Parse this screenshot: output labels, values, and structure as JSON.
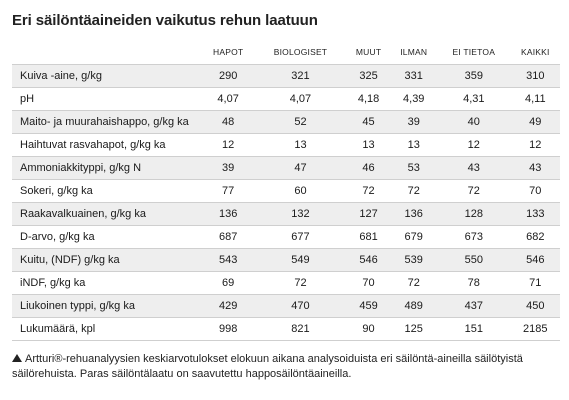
{
  "title": "Eri säilöntäaineiden vaikutus rehun laatuun",
  "columns": [
    "HAPOT",
    "BIOLOGISET",
    "MUUT",
    "ILMAN",
    "EI TIETOA",
    "KAIKKI"
  ],
  "rows": [
    {
      "label": "Kuiva -aine, g/kg",
      "values": [
        "290",
        "321",
        "325",
        "331",
        "359",
        "310"
      ]
    },
    {
      "label": "pH",
      "values": [
        "4,07",
        "4,07",
        "4,18",
        "4,39",
        "4,31",
        "4,11"
      ]
    },
    {
      "label": "Maito- ja muurahaishappo, g/kg ka",
      "values": [
        "48",
        "52",
        "45",
        "39",
        "40",
        "49"
      ]
    },
    {
      "label": "Haihtuvat rasvahapot, g/kg ka",
      "values": [
        "12",
        "13",
        "13",
        "13",
        "12",
        "12"
      ]
    },
    {
      "label": "Ammoniakkityppi, g/kg N",
      "values": [
        "39",
        "47",
        "46",
        "53",
        "43",
        "43"
      ]
    },
    {
      "label": "Sokeri, g/kg ka",
      "values": [
        "77",
        "60",
        "72",
        "72",
        "72",
        "70"
      ]
    },
    {
      "label": "Raakavalkuainen, g/kg ka",
      "values": [
        "136",
        "132",
        "127",
        "136",
        "128",
        "133"
      ]
    },
    {
      "label": "D-arvo, g/kg ka",
      "values": [
        "687",
        "677",
        "681",
        "679",
        "673",
        "682"
      ]
    },
    {
      "label": "Kuitu, (NDF) g/kg ka",
      "values": [
        "543",
        "549",
        "546",
        "539",
        "550",
        "546"
      ]
    },
    {
      "label": "iNDF, g/kg ka",
      "values": [
        "69",
        "72",
        "70",
        "72",
        "78",
        "71"
      ]
    },
    {
      "label": "Liukoinen typpi, g/kg ka",
      "values": [
        "429",
        "470",
        "459",
        "489",
        "437",
        "450"
      ]
    },
    {
      "label": "Lukumäärä, kpl",
      "values": [
        "998",
        "821",
        "90",
        "125",
        "151",
        "2185"
      ]
    }
  ],
  "note": "Artturi®-rehuanalyysien keskiarvotulokset elokuun aikana analysoiduista eri säilöntä-aineilla säilötyistä säilörehuista. Paras säilöntälaatu on saavutettu happosäilöntäaineilla.",
  "note_icon": "triangle-up-icon"
}
